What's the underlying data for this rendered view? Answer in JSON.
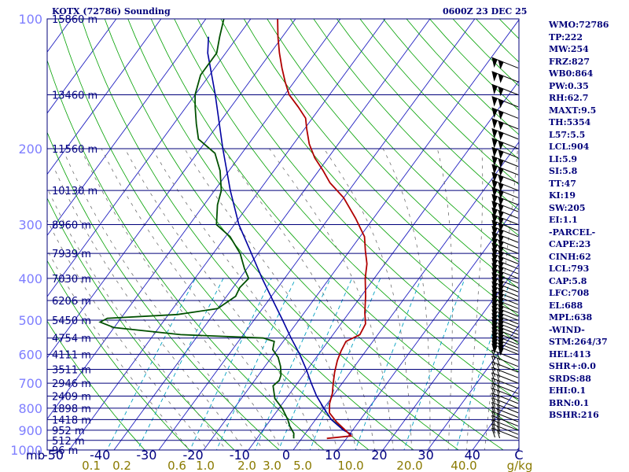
{
  "header": {
    "station_title": "KOTX (72786) Sounding",
    "valid_time": "0600Z 23 DEC 25"
  },
  "indices": [
    "WMO:72786",
    "TP:222",
    "MW:254",
    "FRZ:827",
    "WB0:864",
    "PW:0.35",
    "RH:62.7",
    "MAXT:9.5",
    "TH:5354",
    "L57:5.5",
    "LCL:904",
    "LI:5.9",
    "SI:5.8",
    "TT:47",
    "KI:19",
    "SW:205",
    "EI:1.1",
    "-PARCEL-",
    "CAPE:23",
    "CINH:62",
    "LCL:793",
    "CAP:5.8",
    "LFC:708",
    "EL:688",
    "MPL:638",
    "-WIND-",
    "STM:264/37",
    "HEL:413",
    "SHR+:0.0",
    "SRDS:88",
    "EHI:0.1",
    "BRN:0.1",
    "BSHR:216"
  ],
  "colors": {
    "isobar": "#00007a",
    "isotherm": "#2020c0",
    "dry_adiabat": "#00a000",
    "moist_adiabat": "#707070",
    "mixing_ratio": "#00a0c0",
    "temperature": "#b00000",
    "dewpoint": "#005000",
    "parcel": "#0000a0",
    "pressure_label": "#7f7fff",
    "height_label": "#000080",
    "temp_label": "#000080",
    "mixing_label": "#8a7a00",
    "wind_barb": "#000000"
  },
  "chart_data": {
    "type": "skew-t",
    "pressure_ticks": [
      "100",
      "200",
      "300",
      "400",
      "500",
      "600",
      "700",
      "800",
      "900",
      "1000"
    ],
    "pressure_unit": "mb",
    "temp_axis_labels": [
      "-50",
      "-40",
      "-30",
      "-20",
      "-10",
      "0",
      "10",
      "20",
      "30",
      "40",
      "C"
    ],
    "mixing_ratio_labels": [
      "0.1",
      "0.2",
      "0.6",
      "1.0",
      "2.0",
      "3.0",
      "5.0",
      "10.0",
      "20.0",
      "40.0",
      "g/kg"
    ],
    "mixing_ratio_values": [
      0.1,
      0.2,
      0.6,
      1.0,
      2.0,
      3.0,
      5.0,
      10.0,
      20.0,
      40.0
    ],
    "height_levels": [
      {
        "p": 100,
        "label": "15860 m"
      },
      {
        "p": 150,
        "label": "13460 m"
      },
      {
        "p": 200,
        "label": "11560 m"
      },
      {
        "p": 250,
        "label": "10130 m"
      },
      {
        "p": 300,
        "label": "8960 m"
      },
      {
        "p": 350,
        "label": "7939 m"
      },
      {
        "p": 400,
        "label": "7030 m"
      },
      {
        "p": 450,
        "label": "6206 m"
      },
      {
        "p": 500,
        "label": "5450 m"
      },
      {
        "p": 550,
        "label": "4754 m"
      },
      {
        "p": 600,
        "label": "4111 m"
      },
      {
        "p": 650,
        "label": "3511 m"
      },
      {
        "p": 700,
        "label": "2946 m"
      },
      {
        "p": 750,
        "label": "2409 m"
      },
      {
        "p": 800,
        "label": "1898 m"
      },
      {
        "p": 850,
        "label": "1418 m"
      },
      {
        "p": 900,
        "label": "952 m"
      },
      {
        "p": 950,
        "label": "512 m"
      },
      {
        "p": 1000,
        "label": "96 m"
      }
    ],
    "temperature_profile": [
      [
        940,
        5.6
      ],
      [
        928,
        10.6
      ],
      [
        900,
        8.4
      ],
      [
        860,
        5.0
      ],
      [
        820,
        2.0
      ],
      [
        780,
        0.5
      ],
      [
        740,
        -0.5
      ],
      [
        700,
        -2.0
      ],
      [
        660,
        -3.5
      ],
      [
        620,
        -4.8
      ],
      [
        590,
        -5.5
      ],
      [
        560,
        -6.0
      ],
      [
        540,
        -4.0
      ],
      [
        510,
        -4.5
      ],
      [
        480,
        -6.5
      ],
      [
        440,
        -9.0
      ],
      [
        400,
        -12.0
      ],
      [
        370,
        -14.0
      ],
      [
        345,
        -16.5
      ],
      [
        320,
        -19.0
      ],
      [
        290,
        -24.0
      ],
      [
        260,
        -30.0
      ],
      [
        240,
        -35.5
      ],
      [
        225,
        -39.0
      ],
      [
        210,
        -43.0
      ],
      [
        195,
        -46.5
      ],
      [
        180,
        -49.5
      ],
      [
        170,
        -51.5
      ],
      [
        160,
        -55.0
      ],
      [
        150,
        -59.0
      ],
      [
        140,
        -62.0
      ],
      [
        130,
        -65.0
      ],
      [
        120,
        -68.0
      ],
      [
        110,
        -71.0
      ],
      [
        100,
        -74.0
      ]
    ],
    "dewpoint_profile": [
      [
        940,
        -1.8
      ],
      [
        915,
        -2.6
      ],
      [
        880,
        -4.7
      ],
      [
        850,
        -6.2
      ],
      [
        800,
        -9.3
      ],
      [
        760,
        -12.5
      ],
      [
        710,
        -15.0
      ],
      [
        690,
        -14.5
      ],
      [
        670,
        -15.0
      ],
      [
        640,
        -16.5
      ],
      [
        610,
        -18.5
      ],
      [
        585,
        -21.0
      ],
      [
        560,
        -22.0
      ],
      [
        550,
        -25.0
      ],
      [
        540,
        -44.0
      ],
      [
        520,
        -60.0
      ],
      [
        505,
        -64.0
      ],
      [
        495,
        -63.0
      ],
      [
        485,
        -48.0
      ],
      [
        470,
        -40.0
      ],
      [
        440,
        -38.0
      ],
      [
        420,
        -38.5
      ],
      [
        400,
        -38.0
      ],
      [
        380,
        -40.5
      ],
      [
        350,
        -44.0
      ],
      [
        320,
        -49.0
      ],
      [
        300,
        -54.0
      ],
      [
        270,
        -57.0
      ],
      [
        250,
        -58.5
      ],
      [
        225,
        -62.0
      ],
      [
        205,
        -66.0
      ],
      [
        190,
        -72.0
      ],
      [
        175,
        -75.0
      ],
      [
        160,
        -78.0
      ],
      [
        150,
        -80.0
      ],
      [
        135,
        -82.0
      ],
      [
        120,
        -82.0
      ],
      [
        110,
        -84.0
      ],
      [
        100,
        -86.0
      ]
    ],
    "parcel_trace": [
      [
        920,
        10.5
      ],
      [
        900,
        8.0
      ],
      [
        850,
        3.5
      ],
      [
        800,
        0.0
      ],
      [
        750,
        -3.6
      ],
      [
        700,
        -6.9
      ],
      [
        650,
        -10.3
      ],
      [
        600,
        -14.2
      ],
      [
        550,
        -18.8
      ],
      [
        500,
        -23.6
      ],
      [
        450,
        -29.0
      ],
      [
        400,
        -35.0
      ],
      [
        350,
        -41.5
      ],
      [
        300,
        -49.0
      ],
      [
        250,
        -56.5
      ],
      [
        200,
        -65.0
      ],
      [
        150,
        -75.5
      ],
      [
        120,
        -84.0
      ],
      [
        110,
        -86.5
      ]
    ],
    "wind_levels_mb": [
      130,
      140,
      150,
      160,
      170,
      180,
      190,
      200,
      210,
      220,
      230,
      240,
      250,
      260,
      270,
      280,
      290,
      300,
      310,
      320,
      330,
      340,
      350,
      360,
      370,
      380,
      390,
      400,
      410,
      420,
      430,
      440,
      450,
      460,
      470,
      480,
      490,
      500,
      510,
      520,
      530,
      540,
      550,
      560,
      570,
      580,
      590,
      600,
      620,
      640,
      660,
      680,
      700,
      720,
      740,
      760,
      780,
      800,
      820,
      840,
      860,
      880,
      900,
      920,
      940
    ]
  }
}
